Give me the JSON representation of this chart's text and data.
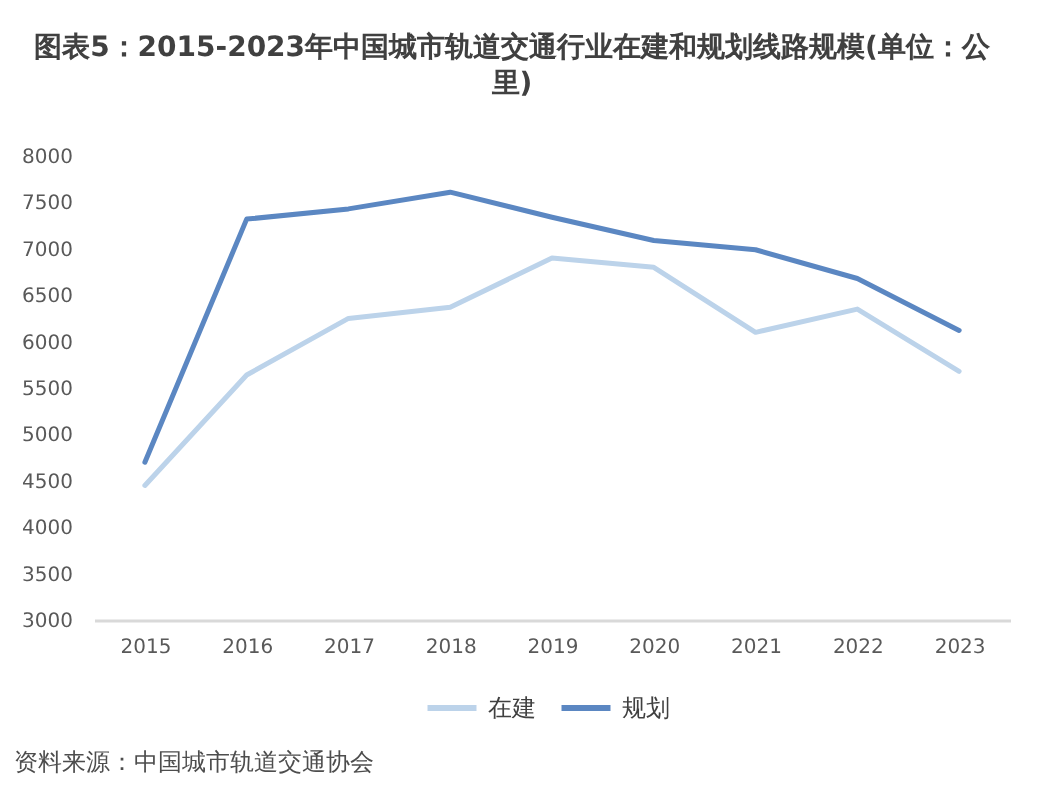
{
  "chart_data": {
    "type": "line",
    "title": "图表5：2015-2023年中国城市轨道交通行业在建和规划线路规模(单位：公里)",
    "categories": [
      "2015",
      "2016",
      "2017",
      "2018",
      "2019",
      "2020",
      "2021",
      "2022",
      "2023"
    ],
    "series": [
      {
        "name": "在建",
        "color": "#bcd3ea",
        "values": [
          4450,
          5640,
          6250,
          6370,
          6900,
          6800,
          6100,
          6350,
          5680
        ]
      },
      {
        "name": "规划",
        "color": "#5b87c2",
        "values": [
          4700,
          7320,
          7430,
          7610,
          7340,
          7090,
          6990,
          6680,
          6120
        ]
      }
    ],
    "ylim": [
      3000,
      8000
    ],
    "yticks": [
      3000,
      3500,
      4000,
      4500,
      5000,
      5500,
      6000,
      6500,
      7000,
      7500,
      8000
    ],
    "grid": false,
    "legend": "bottom",
    "marker": "none",
    "line_style": "solid",
    "annotations": [
      "资料来源：中国城市轨道交通协会"
    ]
  }
}
